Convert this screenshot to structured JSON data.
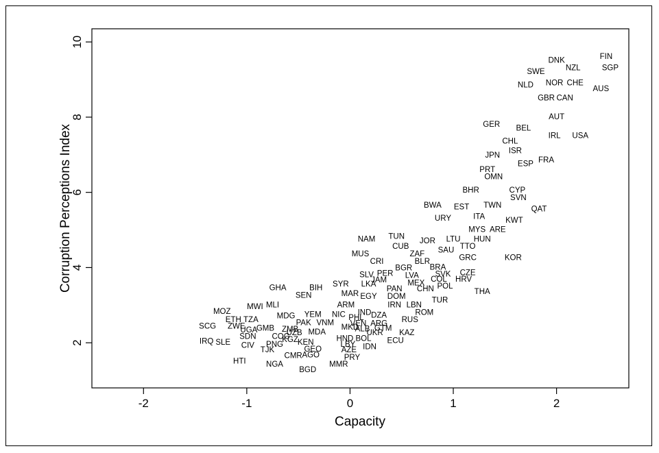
{
  "chart_data": {
    "type": "scatter",
    "marker": "text-label",
    "xlabel": "Capacity",
    "ylabel": "Corruption Perceptions Index",
    "xlim": [
      -2.5,
      2.7
    ],
    "ylim": [
      0.8,
      10.35
    ],
    "xticks": [
      -2,
      -1,
      0,
      1,
      2
    ],
    "yticks": [
      2,
      4,
      6,
      8,
      10
    ],
    "xtick_labels": [
      "-2",
      "-1",
      "0",
      "1",
      "2"
    ],
    "ytick_labels": [
      "2",
      "4",
      "6",
      "8",
      "10"
    ],
    "grid": false,
    "points": [
      {
        "label": "FIN",
        "x": 2.48,
        "y": 9.6
      },
      {
        "label": "DNK",
        "x": 2.0,
        "y": 9.5
      },
      {
        "label": "NZL",
        "x": 2.16,
        "y": 9.3
      },
      {
        "label": "SGP",
        "x": 2.52,
        "y": 9.3
      },
      {
        "label": "SWE",
        "x": 1.8,
        "y": 9.2
      },
      {
        "label": "NOR",
        "x": 1.98,
        "y": 8.9
      },
      {
        "label": "CHE",
        "x": 2.18,
        "y": 8.9
      },
      {
        "label": "NLD",
        "x": 1.7,
        "y": 8.85
      },
      {
        "label": "AUS",
        "x": 2.43,
        "y": 8.75
      },
      {
        "label": "GBR",
        "x": 1.9,
        "y": 8.5
      },
      {
        "label": "CAN",
        "x": 2.08,
        "y": 8.5
      },
      {
        "label": "AUT",
        "x": 2.0,
        "y": 8.0
      },
      {
        "label": "GER",
        "x": 1.37,
        "y": 7.8
      },
      {
        "label": "BEL",
        "x": 1.68,
        "y": 7.7
      },
      {
        "label": "IRL",
        "x": 1.98,
        "y": 7.5
      },
      {
        "label": "USA",
        "x": 2.23,
        "y": 7.5
      },
      {
        "label": "CHL",
        "x": 1.55,
        "y": 7.35
      },
      {
        "label": "ISR",
        "x": 1.6,
        "y": 7.1
      },
      {
        "label": "JPN",
        "x": 1.38,
        "y": 6.98
      },
      {
        "label": "FRA",
        "x": 1.9,
        "y": 6.85
      },
      {
        "label": "ESP",
        "x": 1.7,
        "y": 6.75
      },
      {
        "label": "PRT",
        "x": 1.33,
        "y": 6.6
      },
      {
        "label": "OMN",
        "x": 1.39,
        "y": 6.4
      },
      {
        "label": "BHR",
        "x": 1.17,
        "y": 6.05
      },
      {
        "label": "CYP",
        "x": 1.62,
        "y": 6.05
      },
      {
        "label": "SVN",
        "x": 1.63,
        "y": 5.85
      },
      {
        "label": "BWA",
        "x": 0.8,
        "y": 5.65
      },
      {
        "label": "EST",
        "x": 1.08,
        "y": 5.6
      },
      {
        "label": "TWN",
        "x": 1.38,
        "y": 5.65
      },
      {
        "label": "QAT",
        "x": 1.83,
        "y": 5.55
      },
      {
        "label": "URY",
        "x": 0.9,
        "y": 5.3
      },
      {
        "label": "ITA",
        "x": 1.25,
        "y": 5.35
      },
      {
        "label": "KWT",
        "x": 1.59,
        "y": 5.25
      },
      {
        "label": "MYS",
        "x": 1.23,
        "y": 5.0
      },
      {
        "label": "ARE",
        "x": 1.43,
        "y": 5.0
      },
      {
        "label": "NAM",
        "x": 0.16,
        "y": 4.75
      },
      {
        "label": "TUN",
        "x": 0.45,
        "y": 4.82
      },
      {
        "label": "JOR",
        "x": 0.75,
        "y": 4.7
      },
      {
        "label": "LTU",
        "x": 1.0,
        "y": 4.75
      },
      {
        "label": "HUN",
        "x": 1.28,
        "y": 4.75
      },
      {
        "label": "CUB",
        "x": 0.49,
        "y": 4.55
      },
      {
        "label": "TTO",
        "x": 1.14,
        "y": 4.55
      },
      {
        "label": "SAU",
        "x": 0.93,
        "y": 4.45
      },
      {
        "label": "MUS",
        "x": 0.1,
        "y": 4.35
      },
      {
        "label": "ZAF",
        "x": 0.65,
        "y": 4.35
      },
      {
        "label": "GRC",
        "x": 1.14,
        "y": 4.25
      },
      {
        "label": "KOR",
        "x": 1.58,
        "y": 4.25
      },
      {
        "label": "CRI",
        "x": 0.26,
        "y": 4.15
      },
      {
        "label": "BLR",
        "x": 0.7,
        "y": 4.15
      },
      {
        "label": "BGR",
        "x": 0.52,
        "y": 3.98
      },
      {
        "label": "BRA",
        "x": 0.85,
        "y": 4.0
      },
      {
        "label": "CZE",
        "x": 1.14,
        "y": 3.85
      },
      {
        "label": "SLV",
        "x": 0.16,
        "y": 3.8
      },
      {
        "label": "PER",
        "x": 0.34,
        "y": 3.83
      },
      {
        "label": "LVA",
        "x": 0.6,
        "y": 3.78
      },
      {
        "label": "SVK",
        "x": 0.9,
        "y": 3.82
      },
      {
        "label": "JAM",
        "x": 0.28,
        "y": 3.66
      },
      {
        "label": "COL",
        "x": 0.86,
        "y": 3.68
      },
      {
        "label": "HRV",
        "x": 1.1,
        "y": 3.68
      },
      {
        "label": "MEX",
        "x": 0.64,
        "y": 3.58
      },
      {
        "label": "GHA",
        "x": -0.7,
        "y": 3.45
      },
      {
        "label": "BIH",
        "x": -0.33,
        "y": 3.45
      },
      {
        "label": "SYR",
        "x": -0.09,
        "y": 3.55
      },
      {
        "label": "LKA",
        "x": 0.18,
        "y": 3.55
      },
      {
        "label": "POL",
        "x": 0.92,
        "y": 3.5
      },
      {
        "label": "PAN",
        "x": 0.43,
        "y": 3.42
      },
      {
        "label": "CHN",
        "x": 0.73,
        "y": 3.42
      },
      {
        "label": "THA",
        "x": 1.28,
        "y": 3.35
      },
      {
        "label": "SEN",
        "x": -0.45,
        "y": 3.25
      },
      {
        "label": "MAR",
        "x": 0.0,
        "y": 3.3
      },
      {
        "label": "EGY",
        "x": 0.18,
        "y": 3.22
      },
      {
        "label": "DOM",
        "x": 0.45,
        "y": 3.22
      },
      {
        "label": "TUR",
        "x": 0.87,
        "y": 3.12
      },
      {
        "label": "MWI",
        "x": -0.92,
        "y": 2.95
      },
      {
        "label": "MLI",
        "x": -0.75,
        "y": 3.0
      },
      {
        "label": "ARM",
        "x": -0.04,
        "y": 3.0
      },
      {
        "label": "IRN",
        "x": 0.43,
        "y": 3.0
      },
      {
        "label": "LBN",
        "x": 0.62,
        "y": 3.0
      },
      {
        "label": "MOZ",
        "x": -1.24,
        "y": 2.82
      },
      {
        "label": "ROM",
        "x": 0.72,
        "y": 2.8
      },
      {
        "label": "IND",
        "x": 0.14,
        "y": 2.8
      },
      {
        "label": "NIC",
        "x": -0.11,
        "y": 2.74
      },
      {
        "label": "YEM",
        "x": -0.36,
        "y": 2.74
      },
      {
        "label": "MDG",
        "x": -0.62,
        "y": 2.7
      },
      {
        "label": "DZA",
        "x": 0.28,
        "y": 2.72
      },
      {
        "label": "ETH",
        "x": -1.13,
        "y": 2.6
      },
      {
        "label": "TZA",
        "x": -0.96,
        "y": 2.6
      },
      {
        "label": "PHL",
        "x": 0.06,
        "y": 2.66
      },
      {
        "label": "RUS",
        "x": 0.58,
        "y": 2.6
      },
      {
        "label": "PAK",
        "x": -0.45,
        "y": 2.52
      },
      {
        "label": "VNM",
        "x": -0.24,
        "y": 2.52
      },
      {
        "label": "VEN",
        "x": 0.08,
        "y": 2.5
      },
      {
        "label": "ARG",
        "x": 0.28,
        "y": 2.5
      },
      {
        "label": "SCG",
        "x": -1.38,
        "y": 2.43
      },
      {
        "label": "ZWE",
        "x": -1.1,
        "y": 2.43
      },
      {
        "label": "GMB",
        "x": -0.82,
        "y": 2.38
      },
      {
        "label": "ZMB",
        "x": -0.58,
        "y": 2.35
      },
      {
        "label": "MKD",
        "x": 0.0,
        "y": 2.4
      },
      {
        "label": "ALB",
        "x": 0.12,
        "y": 2.36
      },
      {
        "label": "GTM",
        "x": 0.32,
        "y": 2.38
      },
      {
        "label": "UGA",
        "x": -0.98,
        "y": 2.33
      },
      {
        "label": "UZB",
        "x": -0.54,
        "y": 2.26
      },
      {
        "label": "MDA",
        "x": -0.32,
        "y": 2.28
      },
      {
        "label": "UKR",
        "x": 0.24,
        "y": 2.26
      },
      {
        "label": "KAZ",
        "x": 0.55,
        "y": 2.26
      },
      {
        "label": "SDN",
        "x": -0.99,
        "y": 2.16
      },
      {
        "label": "COG",
        "x": -0.67,
        "y": 2.16
      },
      {
        "label": "HND",
        "x": -0.05,
        "y": 2.1
      },
      {
        "label": "BOL",
        "x": 0.13,
        "y": 2.1
      },
      {
        "label": "KGZ",
        "x": -0.58,
        "y": 2.08
      },
      {
        "label": "ECU",
        "x": 0.44,
        "y": 2.05
      },
      {
        "label": "IRQ",
        "x": -1.39,
        "y": 2.03
      },
      {
        "label": "SLE",
        "x": -1.23,
        "y": 2.0
      },
      {
        "label": "KEN",
        "x": -0.43,
        "y": 2.0
      },
      {
        "label": "PNG",
        "x": -0.73,
        "y": 1.95
      },
      {
        "label": "LBY",
        "x": -0.02,
        "y": 1.95
      },
      {
        "label": "CIV",
        "x": -0.99,
        "y": 1.92
      },
      {
        "label": "IDN",
        "x": 0.19,
        "y": 1.88
      },
      {
        "label": "TJK",
        "x": -0.8,
        "y": 1.8
      },
      {
        "label": "GEO",
        "x": -0.36,
        "y": 1.82
      },
      {
        "label": "AZE",
        "x": -0.01,
        "y": 1.8
      },
      {
        "label": "CMR",
        "x": -0.55,
        "y": 1.65
      },
      {
        "label": "AGO",
        "x": -0.38,
        "y": 1.67
      },
      {
        "label": "PRY",
        "x": 0.02,
        "y": 1.6
      },
      {
        "label": "HTI",
        "x": -1.07,
        "y": 1.5
      },
      {
        "label": "MMR",
        "x": -0.11,
        "y": 1.42
      },
      {
        "label": "NGA",
        "x": -0.73,
        "y": 1.42
      },
      {
        "label": "BGD",
        "x": -0.41,
        "y": 1.27
      }
    ]
  }
}
